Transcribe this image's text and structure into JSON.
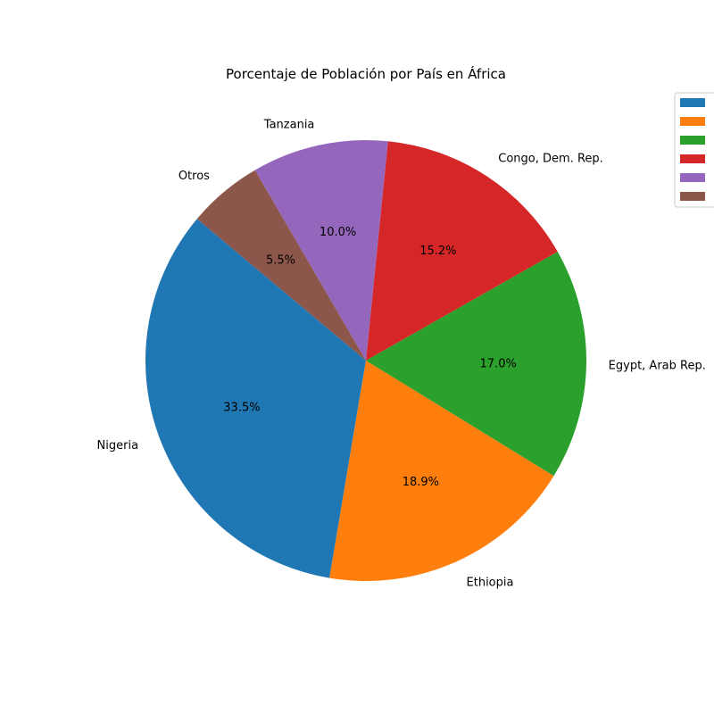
{
  "chart_data": {
    "type": "pie",
    "title": "Porcentaje de Población por País en África",
    "categories": [
      "Nigeria",
      "Ethiopia",
      "Egypt, Arab Rep.",
      "Congo, Dem. Rep.",
      "Tanzania",
      "Otros"
    ],
    "values": [
      33.5,
      18.9,
      17.0,
      15.2,
      10.0,
      5.5
    ],
    "value_labels": [
      "33.5%",
      "18.9%",
      "17.0%",
      "15.2%",
      "10.0%",
      "5.5%"
    ],
    "colors": [
      "#1f77b4",
      "#ff7f0e",
      "#2ca02c",
      "#d62728",
      "#9467bd",
      "#8c564b"
    ],
    "start_angle_deg": 140,
    "direction": "counterclockwise",
    "legend": {
      "placement": "top-right",
      "show_text": false
    }
  }
}
